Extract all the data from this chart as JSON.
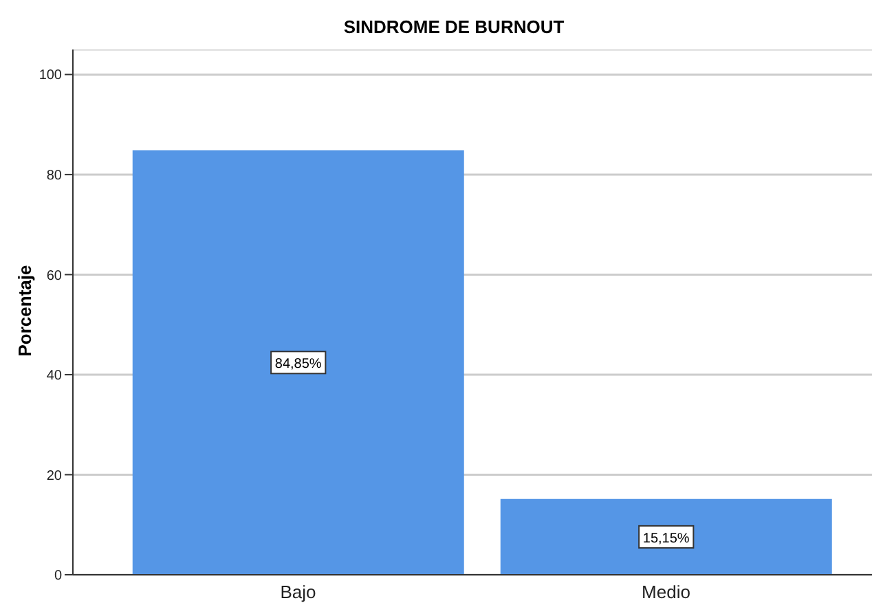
{
  "chart_data": {
    "type": "bar",
    "title": "SINDROME DE BURNOUT",
    "ylabel": "Porcentaje",
    "categories": [
      "Bajo",
      "Medio"
    ],
    "values": [
      84.85,
      15.15
    ],
    "value_labels": [
      "84,85%",
      "15,15%"
    ],
    "color": "#5596e6",
    "ylim": [
      0,
      105
    ],
    "yticks": [
      0,
      20,
      40,
      60,
      80,
      100
    ],
    "grid": "y"
  }
}
